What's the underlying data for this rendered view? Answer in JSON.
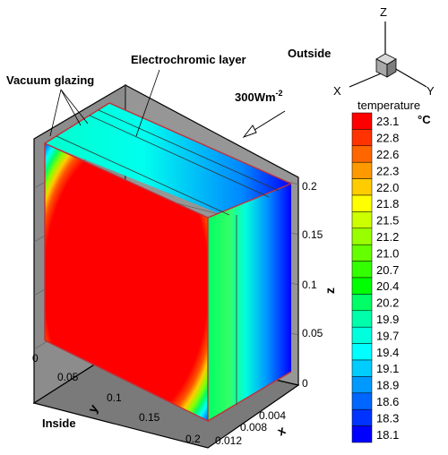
{
  "annotations": {
    "electrochromic": "Electrochromic layer",
    "vacuum": "Vacuum glazing",
    "outside": "Outside",
    "inside": "Inside",
    "heat_flux_base": "300Wm",
    "heat_flux_exp": "-2"
  },
  "triad": {
    "z": "Z",
    "x": "X",
    "y": "Y"
  },
  "axes": {
    "z_label": "z",
    "y_label": "y",
    "x_label": "x",
    "z_ticks": [
      "0",
      "0.05",
      "0.1",
      "0.15",
      "0.2"
    ],
    "y_ticks": [
      "0",
      "0.05",
      "0.1",
      "0.15",
      "0.2"
    ],
    "x_ticks": [
      "0",
      "0.004",
      "0.008",
      "0.012"
    ]
  },
  "legend": {
    "title": "temperature",
    "unit": "°C",
    "levels": [
      {
        "label": "23.1",
        "color": "#ff0000"
      },
      {
        "label": "22.8",
        "color": "#ff3300"
      },
      {
        "label": "22.6",
        "color": "#ff6600"
      },
      {
        "label": "22.3",
        "color": "#ff9900"
      },
      {
        "label": "22.0",
        "color": "#ffcc00"
      },
      {
        "label": "21.8",
        "color": "#ffff00"
      },
      {
        "label": "21.5",
        "color": "#ccff00"
      },
      {
        "label": "21.2",
        "color": "#99ff00"
      },
      {
        "label": "21.0",
        "color": "#66ff00"
      },
      {
        "label": "20.7",
        "color": "#33ff00"
      },
      {
        "label": "20.4",
        "color": "#00ff00"
      },
      {
        "label": "20.2",
        "color": "#00ff66"
      },
      {
        "label": "19.9",
        "color": "#00ffaa"
      },
      {
        "label": "19.7",
        "color": "#00ffdd"
      },
      {
        "label": "19.4",
        "color": "#00ffff"
      },
      {
        "label": "19.1",
        "color": "#00ccff"
      },
      {
        "label": "18.9",
        "color": "#0099ff"
      },
      {
        "label": "18.6",
        "color": "#0066ff"
      },
      {
        "label": "18.3",
        "color": "#0033ff"
      },
      {
        "label": "18.1",
        "color": "#0000ff"
      }
    ]
  }
}
